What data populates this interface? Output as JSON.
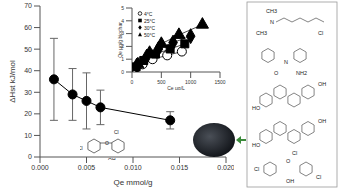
{
  "chart_data": [
    {
      "type": "line",
      "x_label": "Qe mmol/g",
      "y_label": "ΔHst kJ/mol",
      "x": [
        0.0015,
        0.0035,
        0.005,
        0.0065,
        0.014
      ],
      "values": [
        36,
        29,
        26,
        23,
        17
      ],
      "error": [
        19,
        12,
        13,
        8,
        4
      ],
      "color": "#000000",
      "marker": "circle",
      "xlim": [
        0,
        0.02
      ],
      "xticks": [
        {
          "value": 0,
          "label": "0.000"
        },
        {
          "value": 0.005,
          "label": "0.005"
        },
        {
          "value": 0.01,
          "label": "0.010"
        },
        {
          "value": 0.015,
          "label": "0.015"
        },
        {
          "value": 0.02,
          "label": "0.020"
        }
      ],
      "ylim": [
        0,
        70
      ],
      "yticks": [
        0,
        10,
        20,
        30,
        40,
        50,
        60,
        70
      ]
    },
    {
      "type": "scatter",
      "x_label": "Ce μg/L",
      "y_label": "Qe μg/g biochar",
      "xlim": [
        0,
        1500
      ],
      "xticks": [
        0,
        500,
        1000,
        1500
      ],
      "ylim": [
        0,
        5
      ],
      "yticks": [
        0,
        1,
        2,
        3,
        4,
        5
      ],
      "legend": "upper left",
      "series": [
        {
          "name": "4°C",
          "marker": "circle",
          "color": "#000000",
          "line_style": "solid",
          "x": [
            60,
            180,
            350,
            600,
            850
          ],
          "values": [
            0.3,
            0.6,
            1.0,
            1.3,
            1.6
          ]
        },
        {
          "name": "25°C",
          "marker": "square",
          "color": "#000000",
          "line_style": "solid",
          "x": [
            70,
            200,
            400,
            650,
            900
          ],
          "values": [
            0.4,
            0.9,
            1.4,
            1.8,
            2.2
          ]
        },
        {
          "name": "30°C",
          "marker": "diamond",
          "color": "#000000",
          "line_style": "solid",
          "x": [
            80,
            250,
            450,
            700,
            1000
          ],
          "values": [
            0.5,
            1.2,
            1.8,
            2.3,
            2.8
          ]
        },
        {
          "name": "50°C",
          "marker": "triangle",
          "color": "#000000",
          "line_style": "solid",
          "x": [
            100,
            300,
            500,
            800,
            1200
          ],
          "values": [
            0.6,
            1.5,
            2.2,
            2.9,
            3.7
          ]
        }
      ]
    }
  ],
  "main_structure": {
    "atoms": [
      "Cl",
      "OH",
      "O",
      "Cl",
      "Cl"
    ]
  },
  "structures": [
    {
      "atoms": [
        "CH3",
        "N",
        "CH3",
        "Cl"
      ]
    },
    {
      "atoms": [
        "N",
        "O",
        "NH2"
      ]
    },
    {
      "atoms": [
        "OH",
        "HO"
      ]
    },
    {
      "atoms": [
        "OH",
        "HO"
      ]
    },
    {
      "atoms": [
        "Cl",
        "OH",
        "O",
        "Cl",
        "Cl"
      ]
    }
  ]
}
